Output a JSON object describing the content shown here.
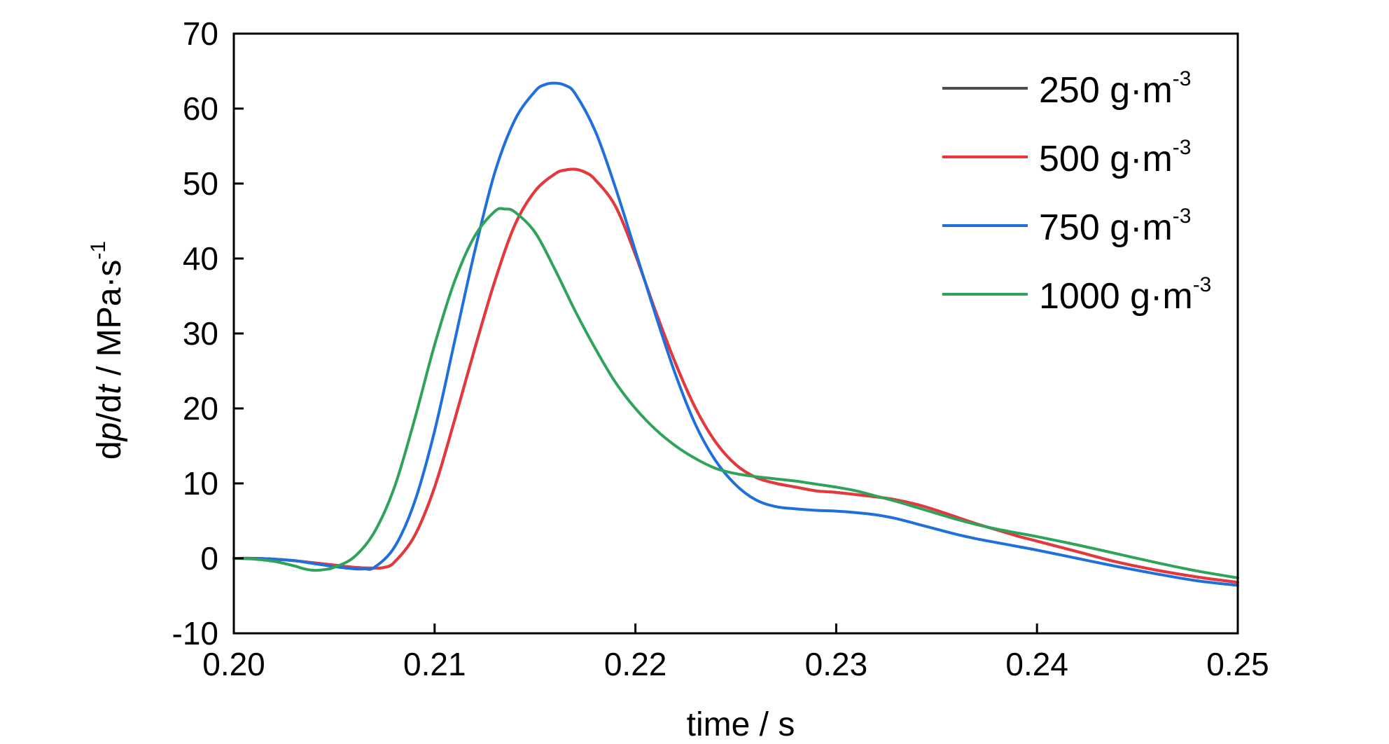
{
  "chart_data": {
    "type": "line",
    "title": "",
    "xlabel": "time / s",
    "ylabel": {
      "prefix": "d",
      "p": "p",
      "mid": "/d",
      "t": "t",
      "unit": " / MPa·s",
      "unit_sup": "-1"
    },
    "xlim": [
      0.2,
      0.25
    ],
    "ylim": [
      -10,
      70
    ],
    "x_ticks": [
      0.2,
      0.21,
      0.22,
      0.23,
      0.24,
      0.25
    ],
    "x_tick_labels": [
      "0.20",
      "0.21",
      "0.22",
      "0.23",
      "0.24",
      "0.25"
    ],
    "y_ticks": [
      -10,
      0,
      10,
      20,
      30,
      40,
      50,
      60,
      70
    ],
    "y_tick_labels": [
      "-10",
      "0",
      "10",
      "20",
      "30",
      "40",
      "50",
      "60",
      "70"
    ],
    "grid": false,
    "legend_position": "top-right",
    "series": [
      {
        "name": "250 g·m",
        "name_sup": "-3",
        "color": "#4d4d4d",
        "x": [
          0.2,
          0.201,
          0.202,
          0.203,
          0.204,
          0.205,
          0.206,
          0.207,
          0.2075,
          0.208,
          0.209,
          0.21,
          0.211,
          0.212,
          0.213,
          0.214,
          0.215,
          0.216,
          0.2165,
          0.217,
          0.2175,
          0.218,
          0.219,
          0.22,
          0.221,
          0.222,
          0.223,
          0.224,
          0.225,
          0.226,
          0.227,
          0.228,
          0.229,
          0.23,
          0.231,
          0.232,
          0.233,
          0.234,
          0.235,
          0.236,
          0.237,
          0.238,
          0.239,
          0.24,
          0.242,
          0.244,
          0.246,
          0.248,
          0.25
        ],
        "y": [
          0.0,
          0.0,
          -0.1,
          -0.3,
          -0.6,
          -0.9,
          -1.2,
          -1.3,
          -1.2,
          -0.5,
          3.0,
          9.5,
          18.5,
          28.0,
          37.0,
          44.5,
          49.0,
          51.3,
          51.8,
          51.9,
          51.5,
          50.5,
          47.0,
          40.5,
          33.0,
          26.0,
          20.0,
          15.5,
          12.5,
          10.8,
          10.0,
          9.5,
          9.0,
          8.8,
          8.5,
          8.2,
          7.8,
          7.2,
          6.4,
          5.5,
          4.6,
          3.8,
          3.0,
          2.3,
          0.9,
          -0.5,
          -1.6,
          -2.5,
          -3.2
        ]
      },
      {
        "name": "500 g·m",
        "name_sup": "-3",
        "color": "#e8373a",
        "x": [
          0.2,
          0.201,
          0.202,
          0.203,
          0.204,
          0.205,
          0.206,
          0.207,
          0.2075,
          0.208,
          0.209,
          0.21,
          0.211,
          0.212,
          0.213,
          0.214,
          0.215,
          0.216,
          0.2165,
          0.217,
          0.2175,
          0.218,
          0.219,
          0.22,
          0.221,
          0.222,
          0.223,
          0.224,
          0.225,
          0.226,
          0.227,
          0.228,
          0.229,
          0.23,
          0.231,
          0.232,
          0.233,
          0.234,
          0.235,
          0.236,
          0.237,
          0.238,
          0.239,
          0.24,
          0.242,
          0.244,
          0.246,
          0.248,
          0.25
        ],
        "y": [
          0.0,
          0.0,
          -0.1,
          -0.3,
          -0.6,
          -0.9,
          -1.2,
          -1.3,
          -1.2,
          -0.5,
          3.0,
          9.5,
          18.5,
          28.0,
          37.0,
          44.5,
          49.0,
          51.3,
          51.8,
          51.9,
          51.5,
          50.5,
          47.0,
          40.5,
          33.0,
          26.0,
          20.0,
          15.5,
          12.5,
          10.8,
          10.0,
          9.5,
          9.0,
          8.8,
          8.5,
          8.2,
          7.8,
          7.2,
          6.4,
          5.5,
          4.6,
          3.8,
          3.0,
          2.3,
          0.9,
          -0.5,
          -1.6,
          -2.5,
          -3.2
        ]
      },
      {
        "name": "750 g·m",
        "name_sup": "-3",
        "color": "#1f6fdc",
        "x": [
          0.2,
          0.201,
          0.202,
          0.203,
          0.204,
          0.205,
          0.206,
          0.2065,
          0.207,
          0.208,
          0.209,
          0.21,
          0.211,
          0.212,
          0.213,
          0.214,
          0.215,
          0.2155,
          0.216,
          0.2165,
          0.217,
          0.218,
          0.219,
          0.22,
          0.221,
          0.222,
          0.223,
          0.224,
          0.225,
          0.226,
          0.227,
          0.228,
          0.229,
          0.23,
          0.231,
          0.232,
          0.233,
          0.234,
          0.235,
          0.236,
          0.237,
          0.238,
          0.239,
          0.24,
          0.242,
          0.244,
          0.246,
          0.248,
          0.25
        ],
        "y": [
          0.0,
          0.0,
          -0.1,
          -0.3,
          -0.7,
          -1.1,
          -1.4,
          -1.4,
          -1.2,
          1.5,
          7.5,
          17.0,
          29.0,
          41.0,
          51.5,
          58.5,
          62.3,
          63.2,
          63.4,
          63.1,
          62.0,
          57.0,
          49.5,
          41.0,
          32.5,
          24.5,
          17.8,
          13.0,
          9.8,
          7.8,
          6.9,
          6.6,
          6.4,
          6.3,
          6.1,
          5.8,
          5.3,
          4.6,
          3.9,
          3.2,
          2.6,
          2.1,
          1.6,
          1.1,
          0.0,
          -1.1,
          -2.1,
          -3.0,
          -3.6
        ]
      },
      {
        "name": "1000 g·m",
        "name_sup": "-3",
        "color": "#2fa35a",
        "x": [
          0.2,
          0.201,
          0.202,
          0.203,
          0.2035,
          0.204,
          0.2045,
          0.205,
          0.206,
          0.207,
          0.208,
          0.209,
          0.21,
          0.211,
          0.212,
          0.213,
          0.2135,
          0.214,
          0.215,
          0.216,
          0.217,
          0.218,
          0.219,
          0.22,
          0.221,
          0.222,
          0.223,
          0.224,
          0.225,
          0.226,
          0.227,
          0.228,
          0.229,
          0.23,
          0.231,
          0.232,
          0.233,
          0.234,
          0.235,
          0.236,
          0.237,
          0.238,
          0.239,
          0.24,
          0.242,
          0.244,
          0.246,
          0.248,
          0.25
        ],
        "y": [
          0.0,
          -0.1,
          -0.4,
          -1.0,
          -1.4,
          -1.6,
          -1.5,
          -1.2,
          0.2,
          3.5,
          9.5,
          18.5,
          28.5,
          37.0,
          43.0,
          46.3,
          46.6,
          46.2,
          43.5,
          38.5,
          33.0,
          28.0,
          23.5,
          20.0,
          17.2,
          15.0,
          13.3,
          12.0,
          11.3,
          10.9,
          10.6,
          10.3,
          9.9,
          9.5,
          9.0,
          8.3,
          7.6,
          6.8,
          6.0,
          5.2,
          4.5,
          3.9,
          3.4,
          2.9,
          1.8,
          0.6,
          -0.6,
          -1.7,
          -2.6
        ]
      }
    ]
  }
}
